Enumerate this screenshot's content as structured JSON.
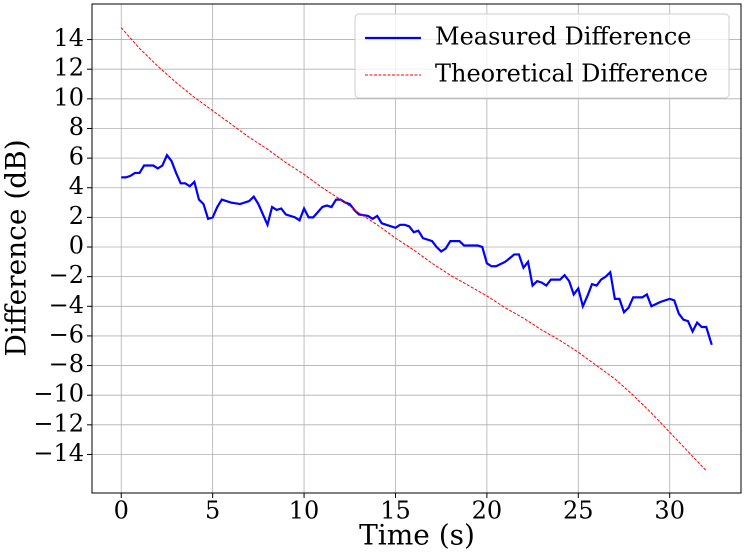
{
  "chart_data": {
    "type": "line",
    "xlabel": "Time (s)",
    "ylabel": "Difference (dB)",
    "xlim": [
      -1.6,
      33.9
    ],
    "ylim": [
      -16.6,
      16.4
    ],
    "xticks": [
      0,
      5,
      10,
      15,
      20,
      25,
      30
    ],
    "yticks": [
      {
        "value": -14,
        "label": "−14"
      },
      {
        "value": -12,
        "label": "−12"
      },
      {
        "value": -10,
        "label": "−10"
      },
      {
        "value": -8,
        "label": "−8"
      },
      {
        "value": -6,
        "label": "−6"
      },
      {
        "value": -4,
        "label": "−4"
      },
      {
        "value": -2,
        "label": "−2"
      },
      0,
      2,
      4,
      6,
      8,
      10,
      12,
      14
    ],
    "grid": true,
    "legend": "upper right",
    "series": [
      {
        "name": "Measured Difference",
        "color": "#0000ff",
        "style": "solid",
        "x": [
          0,
          0.25,
          0.5,
          0.75,
          1,
          1.25,
          1.5,
          1.75,
          2,
          2.25,
          2.5,
          2.75,
          3,
          3.25,
          3.5,
          3.75,
          4,
          4.25,
          4.5,
          4.75,
          5,
          5.25,
          5.5,
          6,
          6.5,
          7,
          7.25,
          7.5,
          8,
          8.25,
          8.5,
          8.75,
          9,
          9.5,
          9.75,
          10,
          10.25,
          10.5,
          11,
          11.25,
          11.5,
          11.75,
          12,
          12.25,
          12.5,
          12.75,
          13,
          13.5,
          13.75,
          14,
          14.25,
          14.5,
          15,
          15.25,
          15.5,
          15.75,
          16,
          16.25,
          16.5,
          17,
          17.25,
          17.5,
          17.75,
          18,
          18.5,
          18.75,
          19,
          19.5,
          19.75,
          20,
          20.25,
          20.5,
          21,
          21.5,
          21.75,
          22,
          22.25,
          22.5,
          22.75,
          23,
          23.25,
          23.5,
          24,
          24.25,
          24.5,
          24.75,
          25,
          25.25,
          25.5,
          25.75,
          26,
          26.25,
          26.5,
          26.75,
          27,
          27.25,
          27.5,
          27.75,
          28,
          28.5,
          28.75,
          29,
          29.5,
          30,
          30.25,
          30.5,
          30.75,
          31,
          31.25,
          31.5,
          31.75,
          32,
          32.3
        ],
        "values": [
          4.7,
          4.7,
          4.8,
          5.0,
          5.0,
          5.5,
          5.5,
          5.5,
          5.3,
          5.5,
          6.2,
          5.8,
          5.0,
          4.3,
          4.3,
          4.1,
          4.4,
          3.2,
          2.9,
          1.9,
          2.0,
          2.7,
          3.2,
          3.0,
          2.9,
          3.1,
          3.4,
          2.9,
          1.5,
          2.7,
          2.5,
          2.6,
          2.2,
          2.0,
          1.8,
          2.6,
          2.0,
          2.0,
          2.7,
          2.8,
          2.7,
          3.2,
          3.2,
          3.0,
          2.9,
          2.5,
          2.2,
          2.1,
          1.9,
          2.1,
          1.6,
          1.5,
          1.3,
          1.5,
          1.5,
          1.4,
          1.0,
          1.1,
          0.6,
          0.4,
          0.0,
          -0.3,
          -0.1,
          0.4,
          0.4,
          0.1,
          0.1,
          0.1,
          0.0,
          -1.1,
          -1.3,
          -1.3,
          -1.0,
          -0.5,
          -0.5,
          -1.4,
          -1.0,
          -2.6,
          -2.3,
          -2.4,
          -2.6,
          -2.2,
          -2.2,
          -1.9,
          -2.3,
          -3.2,
          -2.8,
          -4.0,
          -3.3,
          -2.5,
          -2.6,
          -2.2,
          -2.0,
          -1.7,
          -3.5,
          -3.5,
          -4.4,
          -4.1,
          -3.4,
          -3.4,
          -3.2,
          -4.0,
          -3.7,
          -3.5,
          -3.6,
          -4.5,
          -4.9,
          -5.0,
          -5.7,
          -5.1,
          -5.4,
          -5.4,
          -6.6
        ]
      },
      {
        "name": "Theoretical Difference",
        "color": "#ff0000",
        "style": "dashed",
        "x": [
          0,
          1,
          2,
          3,
          4,
          5,
          6,
          7,
          8,
          9,
          10,
          11,
          12,
          13,
          14,
          15,
          16,
          17,
          18,
          19,
          20,
          21,
          22,
          23,
          24,
          25,
          26,
          27,
          28,
          29,
          30,
          31,
          32
        ],
        "values": [
          14.8,
          13.4,
          12.2,
          11.1,
          10.1,
          9.2,
          8.3,
          7.4,
          6.6,
          5.7,
          4.9,
          4.0,
          3.2,
          2.3,
          1.5,
          0.6,
          -0.2,
          -1.1,
          -1.9,
          -2.6,
          -3.3,
          -4.1,
          -4.8,
          -5.6,
          -6.3,
          -7.1,
          -8.0,
          -8.9,
          -10.0,
          -11.2,
          -12.5,
          -13.8,
          -15.1
        ]
      }
    ]
  }
}
